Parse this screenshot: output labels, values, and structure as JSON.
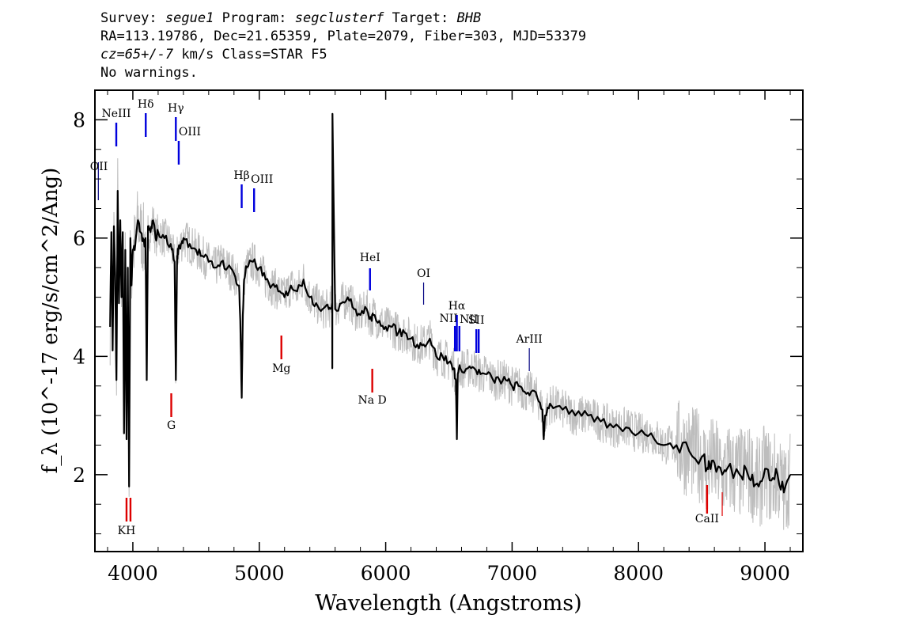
{
  "header": {
    "survey_label": "Survey:",
    "survey": "segue1",
    "program_label": "Program:",
    "program": "segclusterf",
    "target_label": "Target:",
    "target": "BHB",
    "line2": "RA=113.19786, Dec=21.65359, Plate=2079, Fiber=303, MJD=53379",
    "cz": "cz=65+/-7",
    "cz_rest": " km/s Class=STAR F5",
    "line4": "No warnings."
  },
  "chart_data": {
    "type": "line",
    "xlabel": "Wavelength (Angstroms)",
    "ylabel": "f_λ (10^-17 erg/s/cm^2/Ang)",
    "xlim": [
      3700,
      9300
    ],
    "ylim": [
      0.7,
      8.5
    ],
    "xticks": [
      4000,
      5000,
      6000,
      7000,
      8000,
      9000
    ],
    "yticks": [
      2,
      4,
      6,
      8
    ],
    "series": [
      {
        "color": "#000000",
        "x": [
          3820,
          3830,
          3840,
          3850,
          3860,
          3870,
          3880,
          3890,
          3900,
          3910,
          3920,
          3930,
          3940,
          3950,
          3960,
          3970,
          3980,
          3990,
          4000,
          4020,
          4040,
          4060,
          4080,
          4090,
          4100,
          4110,
          4120,
          4140,
          4160,
          4180,
          4200,
          4250,
          4300,
          4330,
          4340,
          4350,
          4360,
          4380,
          4400,
          4450,
          4500,
          4550,
          4600,
          4650,
          4700,
          4750,
          4800,
          4840,
          4850,
          4861,
          4870,
          4880,
          4900,
          4950,
          5000,
          5050,
          5100,
          5150,
          5200,
          5250,
          5300,
          5350,
          5400,
          5450,
          5500,
          5550,
          5577,
          5578,
          5579,
          5600,
          5650,
          5700,
          5750,
          5800,
          5850,
          5890,
          5900,
          5950,
          6000,
          6050,
          6100,
          6150,
          6200,
          6250,
          6300,
          6350,
          6400,
          6450,
          6500,
          6540,
          6555,
          6563,
          6570,
          6590,
          6650,
          6700,
          6750,
          6800,
          6850,
          6900,
          6950,
          7000,
          7050,
          7100,
          7150,
          7200,
          7240,
          7250,
          7260,
          7300,
          7400,
          7500,
          7600,
          7700,
          7800,
          7900,
          8000,
          8100,
          8200,
          8300,
          8400,
          8500,
          8542,
          8560,
          8600,
          8662,
          8700,
          8800,
          8850,
          8900,
          8950,
          9000,
          9050,
          9100,
          9150,
          9200
        ],
        "y": [
          4.5,
          6.1,
          4.1,
          6.2,
          5.4,
          3.6,
          6.8,
          4.9,
          6.3,
          5.0,
          6.1,
          2.7,
          5.8,
          2.6,
          5.5,
          1.8,
          6.0,
          5.2,
          5.8,
          5.9,
          6.3,
          6.1,
          6.0,
          5.9,
          6.0,
          3.6,
          6.2,
          6.1,
          6.3,
          6.0,
          6.1,
          6.0,
          5.9,
          5.6,
          3.6,
          5.7,
          5.8,
          5.9,
          6.0,
          5.9,
          5.8,
          5.7,
          5.6,
          5.5,
          5.6,
          5.5,
          5.4,
          5.2,
          4.6,
          3.3,
          4.7,
          5.3,
          5.5,
          5.6,
          5.5,
          5.3,
          5.2,
          5.1,
          5.0,
          5.2,
          5.1,
          5.3,
          5.0,
          4.9,
          4.8,
          4.8,
          4.9,
          3.8,
          8.1,
          4.8,
          4.9,
          5.0,
          4.8,
          4.7,
          4.8,
          4.6,
          4.7,
          4.6,
          4.5,
          4.5,
          4.4,
          4.4,
          4.3,
          4.2,
          4.2,
          4.3,
          4.0,
          4.0,
          3.9,
          3.8,
          3.6,
          2.6,
          3.7,
          3.8,
          3.8,
          3.8,
          3.7,
          3.7,
          3.6,
          3.6,
          3.6,
          3.5,
          3.5,
          3.4,
          3.4,
          3.3,
          3.1,
          2.6,
          3.0,
          3.2,
          3.1,
          3.0,
          3.0,
          2.9,
          2.8,
          2.8,
          2.7,
          2.7,
          2.5,
          2.5,
          2.4,
          2.3,
          2.1,
          2.2,
          2.2,
          2.0,
          2.1,
          2.0,
          2.1,
          2.0,
          1.8,
          2.1,
          1.9,
          2.0,
          1.7,
          2.0
        ]
      }
    ],
    "annotations": [
      {
        "label": "OII",
        "x": 3727,
        "color": "#000080"
      },
      {
        "label": "NeIII",
        "x": 3869,
        "color": "#0000dd"
      },
      {
        "label": "Hδ",
        "x": 4102,
        "color": "#0000dd"
      },
      {
        "label": "Hγ",
        "x": 4340,
        "color": "#0000dd"
      },
      {
        "label": "OIII",
        "x": 4363,
        "color": "#0000dd"
      },
      {
        "label": "Hβ",
        "x": 4861,
        "color": "#0000dd"
      },
      {
        "label": "OIII",
        "x": 4959,
        "color": "#0000dd"
      },
      {
        "label": "HeI",
        "x": 5876,
        "color": "#0000dd"
      },
      {
        "label": "OI",
        "x": 6300,
        "color": "#000080"
      },
      {
        "label": "NII",
        "x": 6548,
        "color": "#0000dd"
      },
      {
        "label": "Hα",
        "x": 6563,
        "color": "#0000dd"
      },
      {
        "label": "NII",
        "x": 6583,
        "color": "#0000dd"
      },
      {
        "label": "SII",
        "x": 6717,
        "color": "#0000dd"
      },
      {
        "label": "ArIII",
        "x": 7136,
        "color": "#000080"
      },
      {
        "label": "G",
        "x": 4304,
        "color": "#dd0000"
      },
      {
        "label": "Mg",
        "x": 5175,
        "color": "#dd0000"
      },
      {
        "label": "Na D",
        "x": 5894,
        "color": "#dd0000"
      },
      {
        "label": "KH",
        "x": 3950,
        "color": "#dd0000"
      },
      {
        "label": "CaII",
        "x": 8542,
        "color": "#dd0000"
      }
    ]
  }
}
